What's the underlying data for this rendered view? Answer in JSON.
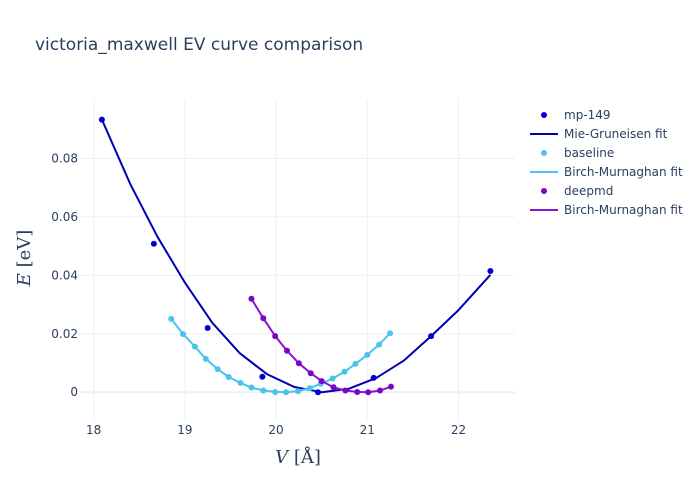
{
  "chart_data": {
    "type": "scatter",
    "title": "victoria_maxwell EV curve comparison",
    "xlabel_var": "V",
    "xlabel_unit": "[Å]",
    "ylabel_var": "E",
    "ylabel_unit": "[eV]",
    "xlim": [
      17.85,
      22.62
    ],
    "ylim": [
      -0.0095,
      0.1
    ],
    "xticks": [
      18,
      19,
      20,
      21,
      22
    ],
    "yticks": [
      0,
      0.02,
      0.04,
      0.06,
      0.08
    ],
    "ytick_labels": [
      "0",
      "0.02",
      "0.04",
      "0.06",
      "0.08"
    ],
    "grid": true,
    "legend_position": "right",
    "series": [
      {
        "name": "mp-149",
        "mode": "markers",
        "color": "#0000cc",
        "x": [
          18.09,
          18.66,
          19.25,
          19.85,
          20.46,
          21.07,
          21.7,
          22.35
        ],
        "y": [
          0.0933,
          0.0508,
          0.022,
          0.0053,
          0.0,
          0.0049,
          0.0192,
          0.0415
        ]
      },
      {
        "name": "Mie-Gruneisen fit",
        "mode": "lines",
        "color": "#0000b3",
        "x": [
          18.09,
          18.4,
          18.7,
          19.0,
          19.3,
          19.6,
          19.9,
          20.2,
          20.5,
          20.8,
          21.1,
          21.4,
          21.7,
          22.0,
          22.35
        ],
        "y": [
          0.0933,
          0.0713,
          0.0532,
          0.0375,
          0.0238,
          0.0134,
          0.0062,
          0.0018,
          0.0,
          0.0012,
          0.0049,
          0.0108,
          0.0192,
          0.0281,
          0.0402
        ]
      },
      {
        "name": "baseline",
        "mode": "markers",
        "color": "#4cc3ef",
        "x": [
          18.85,
          18.98,
          19.11,
          19.23,
          19.36,
          19.48,
          19.61,
          19.73,
          19.86,
          19.99,
          20.11,
          20.24,
          20.37,
          20.49,
          20.62,
          20.75,
          20.87,
          21.0,
          21.13,
          21.25
        ],
        "y": [
          0.0251,
          0.0199,
          0.0156,
          0.0114,
          0.0079,
          0.0052,
          0.0032,
          0.0016,
          0.0006,
          0.0001,
          0.0,
          0.0004,
          0.0014,
          0.0029,
          0.0047,
          0.007,
          0.0097,
          0.0128,
          0.0163,
          0.0202
        ]
      },
      {
        "name": "Birch-Murnaghan fit",
        "mode": "lines",
        "color": "#4cc3ef",
        "x": [
          18.85,
          18.98,
          19.11,
          19.23,
          19.36,
          19.48,
          19.61,
          19.73,
          19.86,
          19.99,
          20.11,
          20.24,
          20.37,
          20.49,
          20.62,
          20.75,
          20.87,
          21.0,
          21.13,
          21.25
        ],
        "y": [
          0.0251,
          0.0199,
          0.0156,
          0.0114,
          0.0079,
          0.0052,
          0.0032,
          0.0016,
          0.0006,
          0.0001,
          0.0,
          0.0004,
          0.0014,
          0.0029,
          0.0047,
          0.007,
          0.0097,
          0.0128,
          0.0163,
          0.0202
        ]
      },
      {
        "name": "deepmd",
        "mode": "markers",
        "color": "#7a05c4",
        "x": [
          19.73,
          19.86,
          19.99,
          20.12,
          20.25,
          20.38,
          20.5,
          20.63,
          20.76,
          20.89,
          21.01,
          21.14,
          21.26
        ],
        "y": [
          0.032,
          0.0253,
          0.0192,
          0.0142,
          0.0099,
          0.0065,
          0.0038,
          0.0017,
          0.0006,
          0.0001,
          0.0,
          0.0006,
          0.0019
        ]
      },
      {
        "name": "Birch-Murnaghan fit",
        "mode": "lines",
        "color": "#8b14d4",
        "x": [
          19.73,
          19.86,
          19.99,
          20.12,
          20.25,
          20.38,
          20.5,
          20.63,
          20.76,
          20.89,
          21.01,
          21.14,
          21.26
        ],
        "y": [
          0.032,
          0.0253,
          0.0192,
          0.0142,
          0.0099,
          0.0065,
          0.0038,
          0.0017,
          0.0006,
          0.0001,
          0.0,
          0.0006,
          0.0019
        ]
      }
    ]
  }
}
